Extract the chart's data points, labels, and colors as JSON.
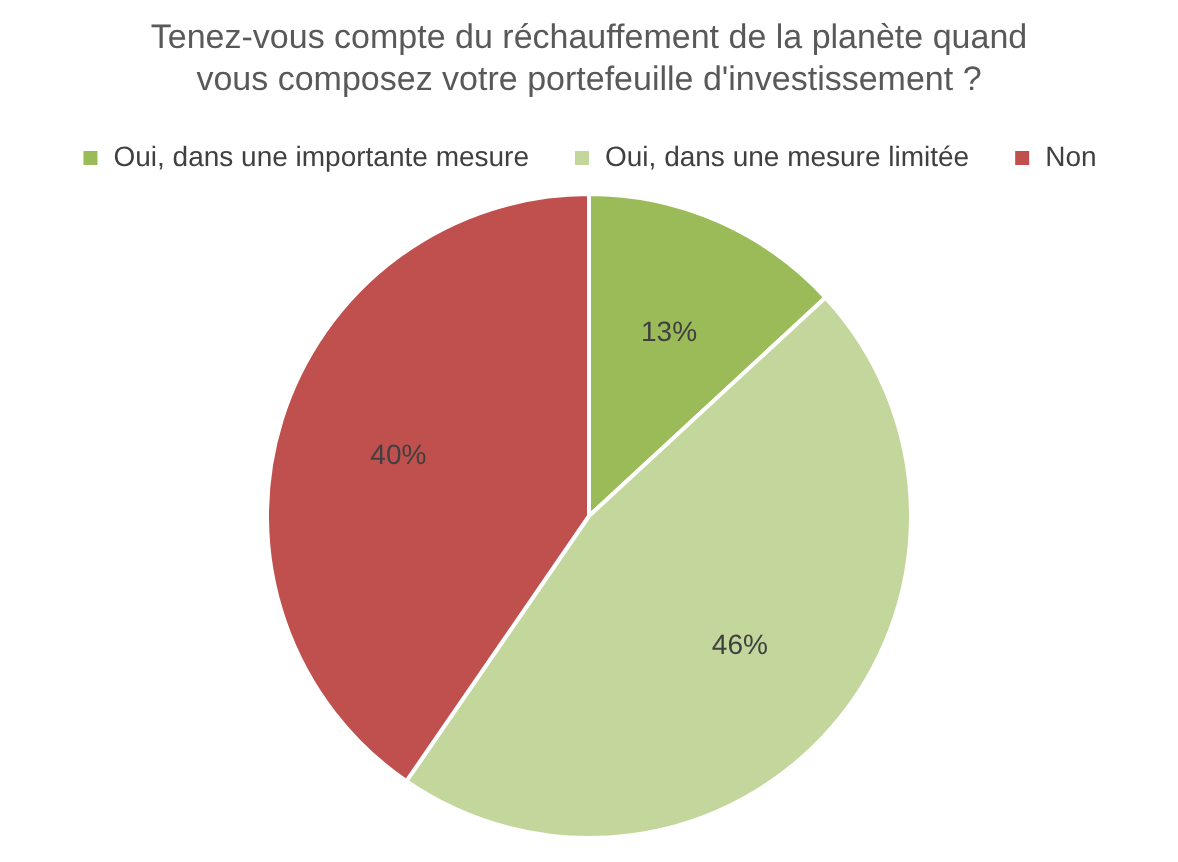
{
  "chart_data": {
    "type": "pie",
    "title": "Tenez-vous compte du réchauffement de la planète quand vous composez votre portefeuille d'investissement ?",
    "categories": [
      "Oui, dans une importante mesure",
      "Oui, dans une mesure limitée",
      "Non"
    ],
    "values": [
      13,
      46,
      40
    ],
    "colors": [
      "#9bbb59",
      "#c3d69b",
      "#c0504d"
    ],
    "value_labels": [
      "13%",
      "46%",
      "40%"
    ],
    "legend": "top"
  }
}
